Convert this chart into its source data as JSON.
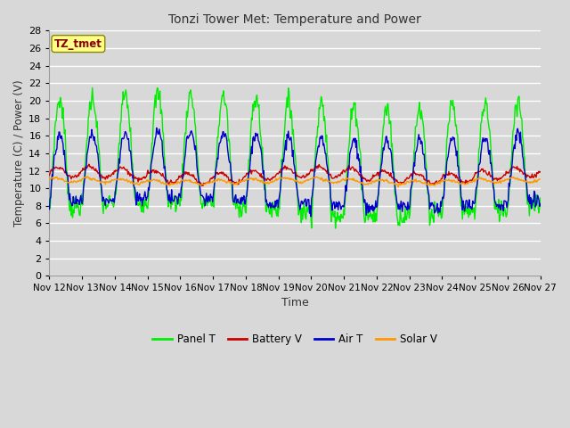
{
  "title": "Tonzi Tower Met: Temperature and Power",
  "xlabel": "Time",
  "ylabel": "Temperature (C) / Power (V)",
  "fig_bg_color": "#d8d8d8",
  "plot_bg_color": "#d8d8d8",
  "grid_color": "#ffffff",
  "ylim": [
    0,
    28
  ],
  "yticks": [
    0,
    2,
    4,
    6,
    8,
    10,
    12,
    14,
    16,
    18,
    20,
    22,
    24,
    26,
    28
  ],
  "xtick_days": [
    12,
    13,
    14,
    15,
    16,
    17,
    18,
    19,
    20,
    21,
    22,
    23,
    24,
    25,
    26,
    27
  ],
  "colors": {
    "panel_t": "#00ee00",
    "battery_v": "#cc0000",
    "air_t": "#0000cc",
    "solar_v": "#ff9900"
  },
  "legend_labels": [
    "Panel T",
    "Battery V",
    "Air T",
    "Solar V"
  ],
  "annotation_text": "TZ_tmet",
  "annotation_color": "#880000",
  "annotation_bg": "#ffff88",
  "annotation_border": "#888800",
  "n_days": 15,
  "n_pts_per_day": 48
}
